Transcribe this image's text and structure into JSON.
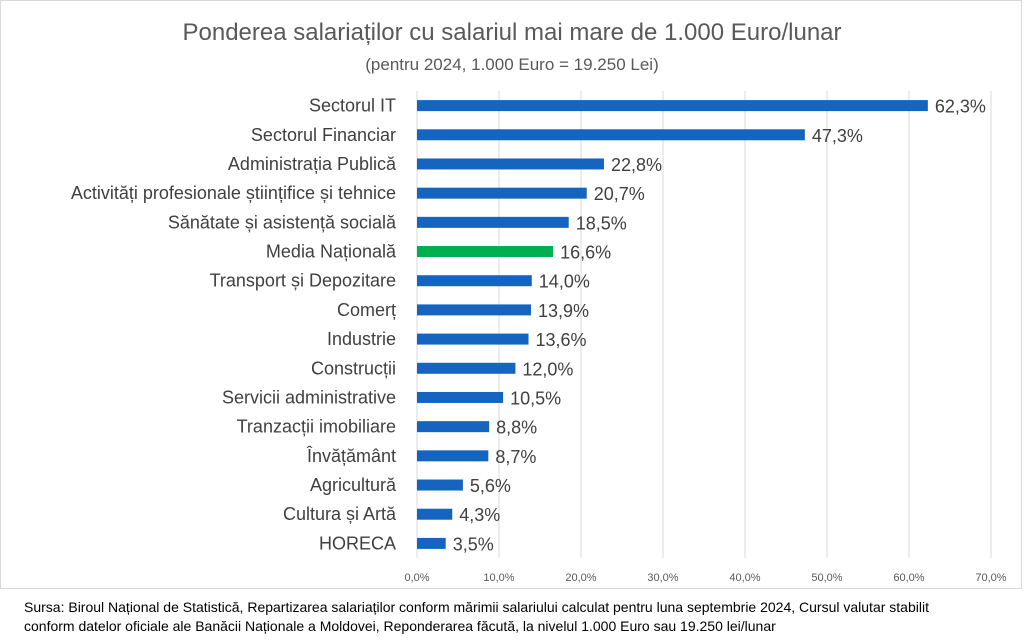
{
  "chart_data": {
    "type": "bar",
    "orientation": "horizontal",
    "title": "Ponderea salariaților cu salariul mai mare de 1.000 Euro/lunar",
    "subtitle": "(pentru 2024, 1.000 Euro = 19.250 Lei)",
    "xlabel": "",
    "ylabel": "",
    "xlim": [
      0,
      70
    ],
    "x_ticks": [
      0,
      10,
      20,
      30,
      40,
      50,
      60,
      70
    ],
    "x_tick_labels": [
      "0,0%",
      "10,0%",
      "20,0%",
      "30,0%",
      "40,0%",
      "50,0%",
      "60,0%",
      "70,0%"
    ],
    "grid": true,
    "legend": "none",
    "categories": [
      "Sectorul IT",
      "Sectorul Financiar",
      "Administrația Publică",
      "Activități profesionale științifice și tehnice",
      "Sănătate și asistență socială",
      "Media Națională",
      "Transport și Depozitare",
      "Comerț",
      "Industrie",
      "Construcții",
      "Servicii administrative",
      "Tranzacții imobiliare",
      "Învățământ",
      "Agricultură",
      "Cultura și Artă",
      "HORECA"
    ],
    "values": [
      62.3,
      47.3,
      22.8,
      20.7,
      18.5,
      16.6,
      14.0,
      13.9,
      13.6,
      12.0,
      10.5,
      8.8,
      8.7,
      5.6,
      4.3,
      3.5
    ],
    "value_labels": [
      "62,3%",
      "47,3%",
      "22,8%",
      "20,7%",
      "18,5%",
      "16,6%",
      "14,0%",
      "13,9%",
      "13,6%",
      "12,0%",
      "10,5%",
      "8,8%",
      "8,7%",
      "5,6%",
      "4,3%",
      "3,5%"
    ],
    "highlight_index": 5,
    "colors": {
      "bar": "#1565c0",
      "highlight": "#00b050",
      "grid": "#d9d9d9",
      "text": "#404040"
    }
  },
  "footnote": {
    "line1": "Sursa: Biroul Național de Statistică, Repartizarea salariaților conform mărimii salariului calculat pentru luna septembrie 2024, Cursul valutar stabilit",
    "line2": "conform datelor oficiale ale Banăcii Naționale a Moldovei, Reponderarea făcută, la nivelul 1.000 Euro sau 19.250 lei/lunar"
  }
}
